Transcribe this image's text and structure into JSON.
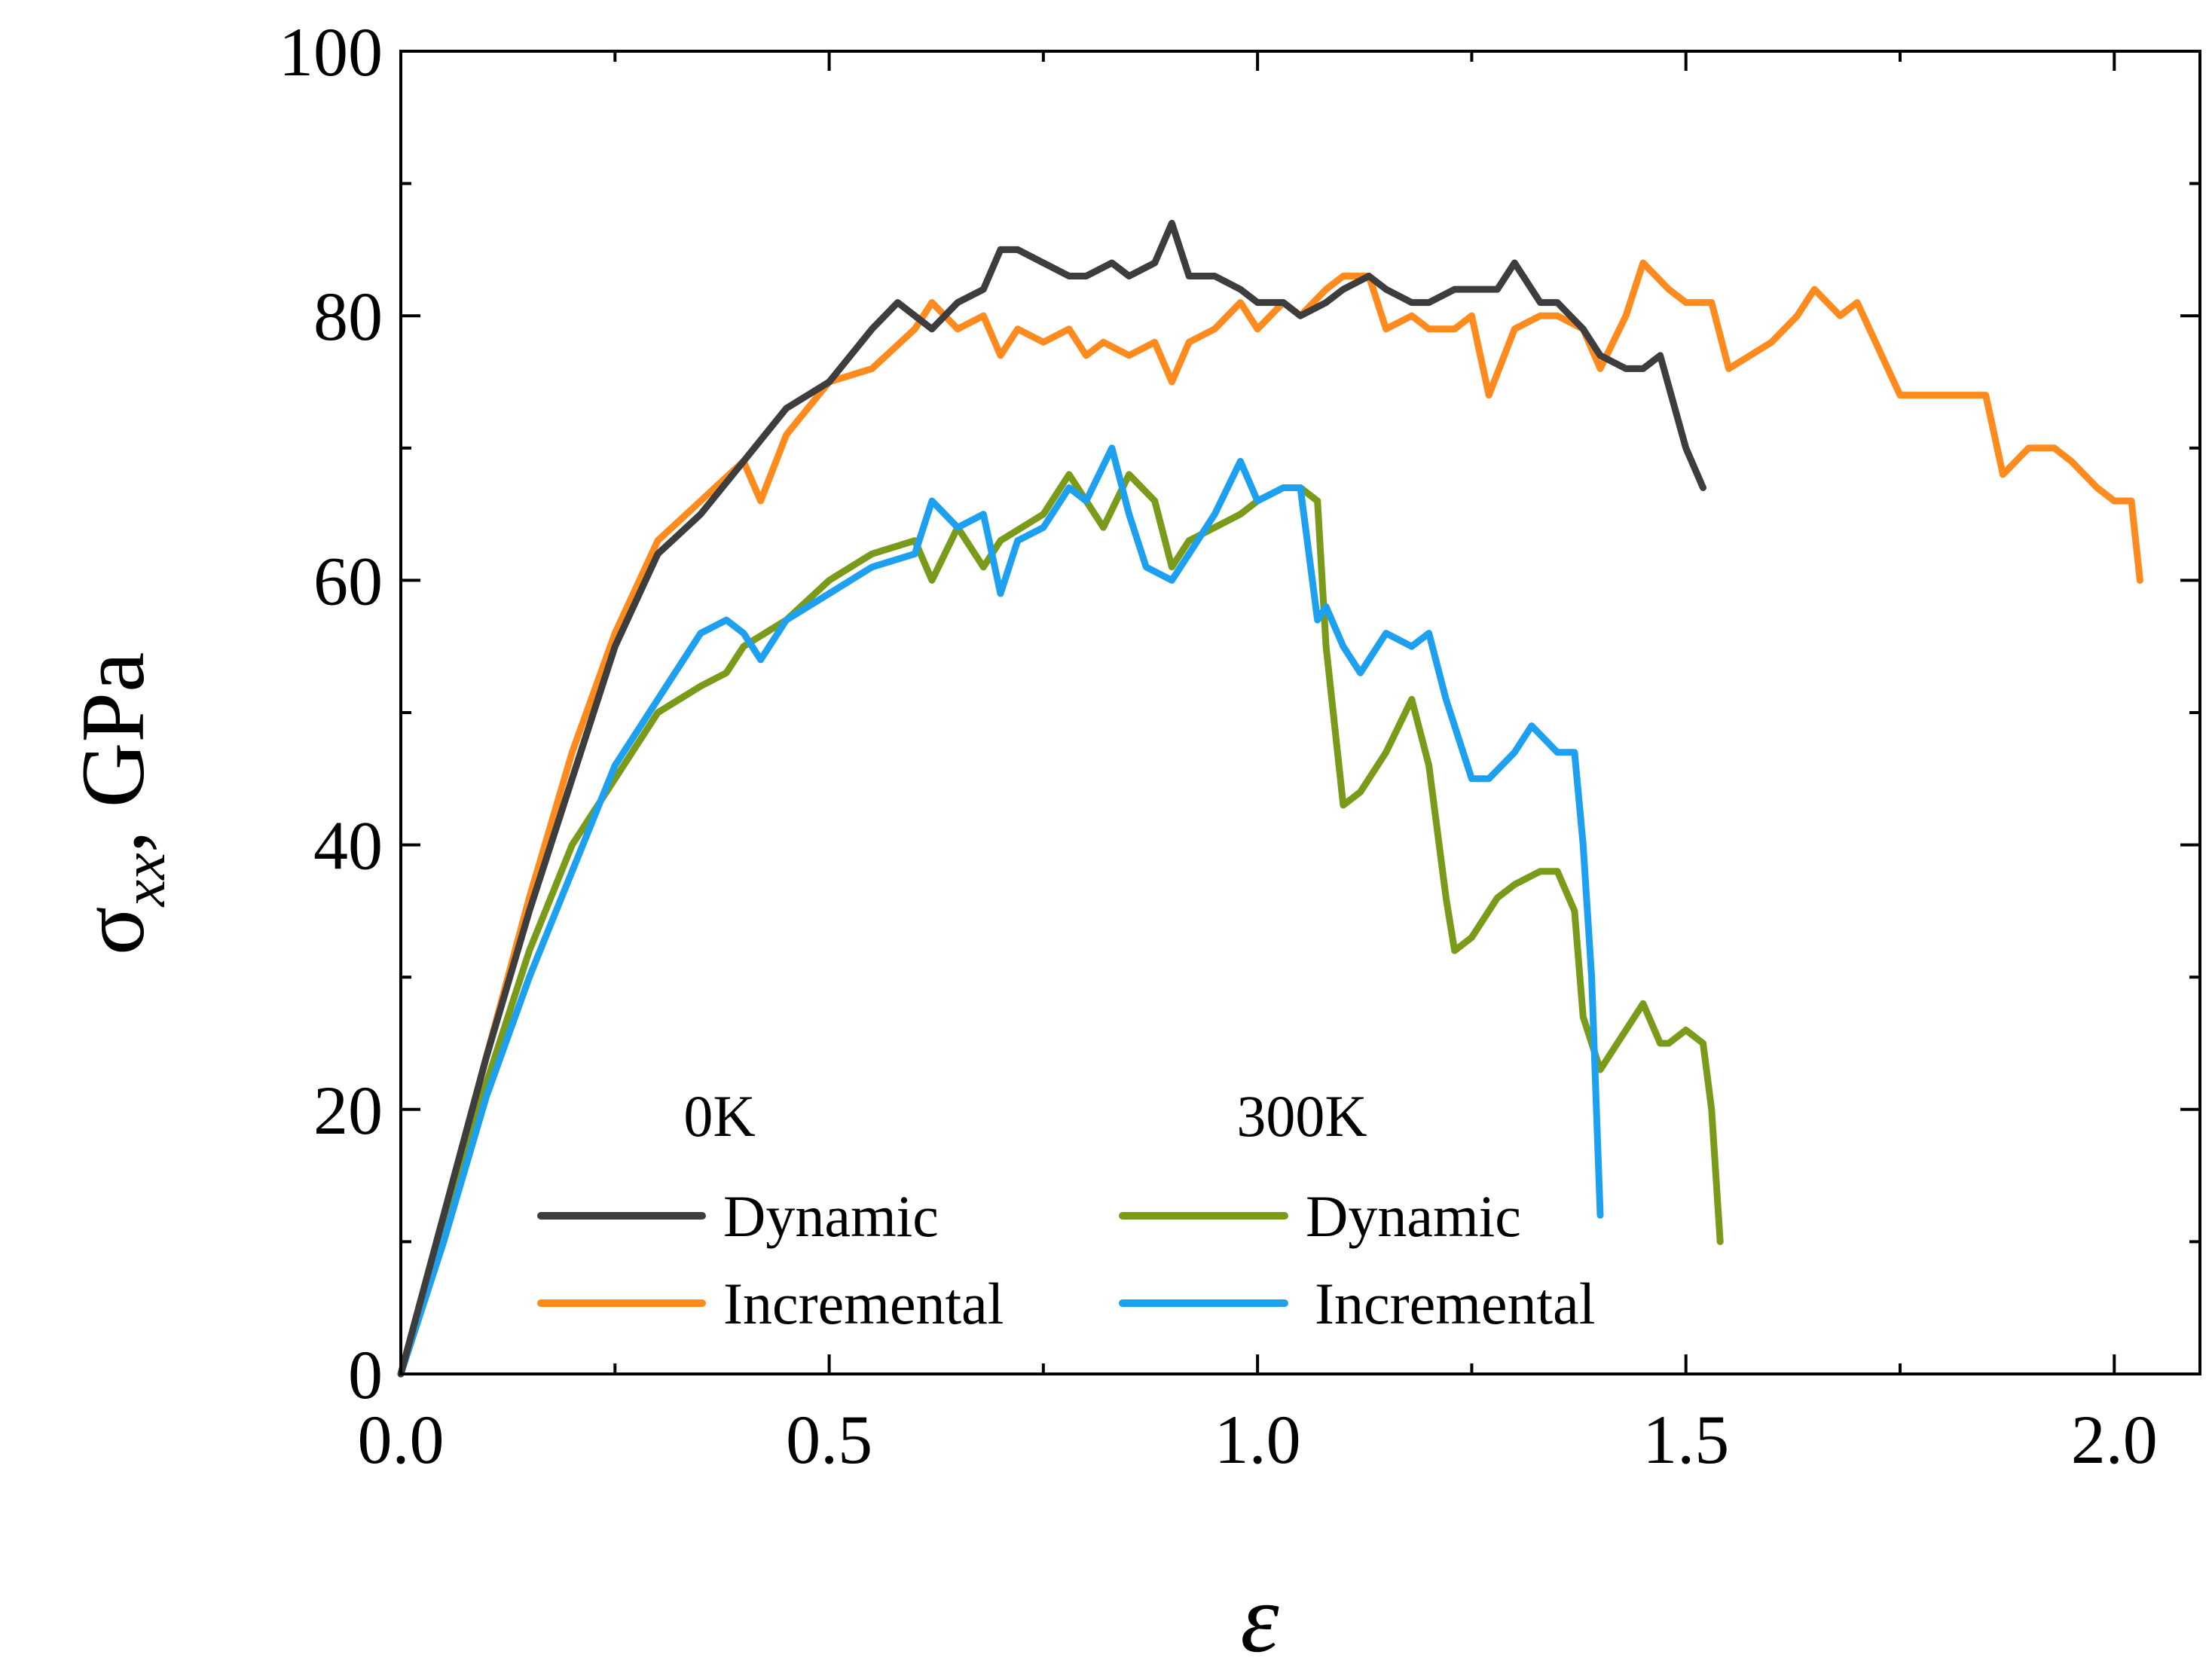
{
  "chart_data": {
    "type": "line",
    "title": "",
    "xlabel": "ε",
    "ylabel_main": "σ",
    "ylabel_sub": "xx",
    "ylabel_suffix": ", GPa",
    "xlim": [
      0.0,
      2.1
    ],
    "ylim": [
      0,
      100
    ],
    "x_ticks": [
      0.0,
      0.5,
      1.0,
      1.5,
      2.0
    ],
    "x_tick_labels": [
      "0.0",
      "0.5",
      "1.0",
      "1.5",
      "2.0"
    ],
    "y_ticks": [
      0,
      20,
      40,
      60,
      80,
      100
    ],
    "y_tick_labels": [
      "0",
      "20",
      "40",
      "60",
      "80",
      "100"
    ],
    "grid": false,
    "legend": {
      "placement": "bottom-center",
      "groups": [
        "0K",
        "300K"
      ]
    },
    "series": [
      {
        "name": "Dynamic",
        "group": "0K",
        "color": "#3d3d3d",
        "x": [
          0.0,
          0.05,
          0.1,
          0.15,
          0.2,
          0.25,
          0.3,
          0.35,
          0.4,
          0.45,
          0.5,
          0.55,
          0.58,
          0.62,
          0.65,
          0.68,
          0.7,
          0.72,
          0.75,
          0.78,
          0.8,
          0.83,
          0.85,
          0.88,
          0.9,
          0.92,
          0.95,
          0.98,
          1.0,
          1.03,
          1.05,
          1.08,
          1.1,
          1.13,
          1.15,
          1.18,
          1.2,
          1.23,
          1.25,
          1.28,
          1.3,
          1.33,
          1.35,
          1.38,
          1.4,
          1.43,
          1.45,
          1.47,
          1.5,
          1.52
        ],
        "y": [
          0,
          12,
          24,
          35,
          45,
          55,
          62,
          65,
          69,
          73,
          75,
          79,
          81,
          79,
          81,
          82,
          85,
          85,
          84,
          83,
          83,
          84,
          83,
          84,
          87,
          83,
          83,
          82,
          81,
          81,
          80,
          81,
          82,
          83,
          82,
          81,
          81,
          82,
          82,
          82,
          84,
          81,
          81,
          79,
          77,
          76,
          76,
          77,
          70,
          67
        ]
      },
      {
        "name": "Incremental",
        "group": "0K",
        "color": "#ff8a1d",
        "x": [
          0.0,
          0.05,
          0.1,
          0.15,
          0.2,
          0.25,
          0.3,
          0.35,
          0.4,
          0.42,
          0.45,
          0.5,
          0.55,
          0.6,
          0.62,
          0.65,
          0.68,
          0.7,
          0.72,
          0.75,
          0.78,
          0.8,
          0.82,
          0.85,
          0.88,
          0.9,
          0.92,
          0.95,
          0.98,
          1.0,
          1.03,
          1.05,
          1.08,
          1.1,
          1.13,
          1.15,
          1.18,
          1.2,
          1.23,
          1.25,
          1.27,
          1.3,
          1.33,
          1.35,
          1.38,
          1.4,
          1.43,
          1.45,
          1.48,
          1.5,
          1.53,
          1.55,
          1.6,
          1.63,
          1.65,
          1.68,
          1.7,
          1.75,
          1.8,
          1.85,
          1.87,
          1.9,
          1.93,
          1.95,
          1.98,
          2.0,
          2.02,
          2.03
        ],
        "y": [
          0,
          12,
          24,
          36,
          47,
          56,
          63,
          66,
          69,
          66,
          71,
          75,
          76,
          79,
          81,
          79,
          80,
          77,
          79,
          78,
          79,
          77,
          78,
          77,
          78,
          75,
          78,
          79,
          81,
          79,
          81,
          80,
          82,
          83,
          83,
          79,
          80,
          79,
          79,
          80,
          74,
          79,
          80,
          80,
          79,
          76,
          80,
          84,
          82,
          81,
          81,
          76,
          78,
          80,
          82,
          80,
          81,
          74,
          74,
          74,
          68,
          70,
          70,
          69,
          67,
          66,
          66,
          60
        ]
      },
      {
        "name": "Dynamic",
        "group": "300K",
        "color": "#7a9a1a",
        "x": [
          0.0,
          0.05,
          0.1,
          0.15,
          0.2,
          0.25,
          0.3,
          0.35,
          0.38,
          0.4,
          0.45,
          0.5,
          0.55,
          0.6,
          0.62,
          0.65,
          0.68,
          0.7,
          0.75,
          0.78,
          0.8,
          0.82,
          0.85,
          0.88,
          0.9,
          0.92,
          0.95,
          0.98,
          1.0,
          1.03,
          1.05,
          1.07,
          1.08,
          1.1,
          1.12,
          1.15,
          1.18,
          1.2,
          1.22,
          1.23,
          1.25,
          1.28,
          1.3,
          1.33,
          1.35,
          1.37,
          1.38,
          1.4,
          1.43,
          1.45,
          1.47,
          1.48,
          1.5,
          1.52,
          1.53,
          1.54
        ],
        "y": [
          0,
          11,
          22,
          32,
          40,
          45,
          50,
          52,
          53,
          55,
          57,
          60,
          62,
          63,
          60,
          64,
          61,
          63,
          65,
          68,
          66,
          64,
          68,
          66,
          61,
          63,
          64,
          65,
          66,
          67,
          67,
          66,
          55,
          43,
          44,
          47,
          51,
          46,
          36,
          32,
          33,
          36,
          37,
          38,
          38,
          35,
          27,
          23,
          26,
          28,
          25,
          25,
          26,
          25,
          20,
          10
        ]
      },
      {
        "name": "Incremental",
        "group": "300K",
        "color": "#1ea0f0",
        "x": [
          0.0,
          0.05,
          0.1,
          0.15,
          0.2,
          0.25,
          0.3,
          0.35,
          0.38,
          0.4,
          0.42,
          0.45,
          0.5,
          0.55,
          0.6,
          0.62,
          0.65,
          0.68,
          0.7,
          0.72,
          0.75,
          0.78,
          0.8,
          0.83,
          0.85,
          0.87,
          0.9,
          0.92,
          0.95,
          0.98,
          1.0,
          1.03,
          1.05,
          1.07,
          1.08,
          1.1,
          1.12,
          1.15,
          1.18,
          1.2,
          1.22,
          1.25,
          1.27,
          1.3,
          1.32,
          1.35,
          1.37,
          1.38,
          1.39,
          1.4
        ],
        "y": [
          0,
          10,
          21,
          30,
          38,
          46,
          51,
          56,
          57,
          56,
          54,
          57,
          59,
          61,
          62,
          66,
          64,
          65,
          59,
          63,
          64,
          67,
          66,
          70,
          65,
          61,
          60,
          62,
          65,
          69,
          66,
          67,
          67,
          57,
          58,
          55,
          53,
          56,
          55,
          56,
          51,
          45,
          45,
          47,
          49,
          47,
          47,
          40,
          30,
          12
        ]
      }
    ]
  }
}
